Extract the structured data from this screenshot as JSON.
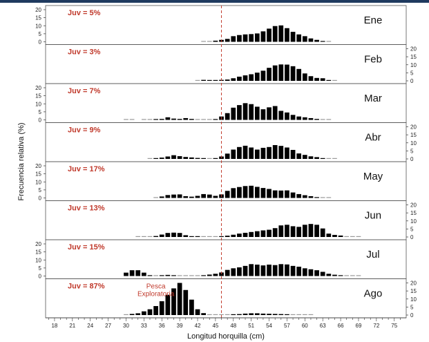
{
  "chart_data": {
    "type": "bar",
    "xlabel": "Longitud horquilla (cm)",
    "ylabel": "Frecuencia relativa (%)",
    "x_ticks": [
      18,
      21,
      24,
      27,
      30,
      33,
      36,
      39,
      42,
      45,
      48,
      51,
      54,
      57,
      60,
      63,
      66,
      69,
      72,
      75
    ],
    "xlim": [
      16.5,
      77
    ],
    "ylim": [
      0,
      20
    ],
    "y_ticks": [
      0,
      5,
      10,
      15,
      20
    ],
    "reference_line_x": 46,
    "bins": [
      30,
      31,
      32,
      33,
      34,
      35,
      36,
      37,
      38,
      39,
      40,
      41,
      42,
      43,
      44,
      45,
      46,
      47,
      48,
      49,
      50,
      51,
      52,
      53,
      54,
      55,
      56,
      57,
      58,
      59,
      60,
      61,
      62,
      63,
      64,
      65,
      66,
      67,
      68,
      69,
      70,
      71
    ],
    "annotation": {
      "month": "Ago",
      "x": 35,
      "lines": [
        "Pesca",
        "Exploratoria"
      ]
    },
    "panels": [
      {
        "month": "Ene",
        "juv": "Juv = 5%",
        "values": [
          0,
          0,
          0,
          0,
          0,
          0,
          0,
          0,
          0,
          0,
          0,
          0,
          0,
          0.2,
          0.3,
          0.7,
          1.2,
          1.8,
          3.5,
          4.2,
          4.6,
          4.8,
          5.2,
          6.5,
          8.2,
          9.8,
          10.2,
          8.5,
          6.2,
          4.6,
          3.5,
          2.1,
          1.2,
          0.4,
          0.2,
          0,
          0,
          0,
          0,
          0,
          0,
          0
        ]
      },
      {
        "month": "Feb",
        "juv": "Juv = 3%",
        "values": [
          0,
          0,
          0,
          0,
          0,
          0,
          0,
          0,
          0,
          0,
          0,
          0,
          0.3,
          0.6,
          0.5,
          0.4,
          0.6,
          0.8,
          1.6,
          2.6,
          3.4,
          4.1,
          5.1,
          6.3,
          8.1,
          9.6,
          10.2,
          10.1,
          9.1,
          7.4,
          4.6,
          2.9,
          1.8,
          1.6,
          0.4,
          0.2,
          0,
          0,
          0,
          0,
          0,
          0
        ]
      },
      {
        "month": "Mar",
        "juv": "Juv = 7%",
        "values": [
          0.2,
          0.2,
          0,
          0.2,
          0.3,
          0.4,
          0.6,
          1.6,
          0.8,
          0.6,
          1.1,
          0.6,
          0.3,
          0.2,
          0.2,
          0.4,
          2.1,
          4.2,
          7.6,
          9.2,
          10.4,
          9.8,
          8.2,
          6.6,
          7.8,
          8.6,
          5.6,
          4.6,
          3.1,
          2.1,
          1.6,
          1.1,
          0.6,
          0.2,
          0.1,
          0,
          0,
          0,
          0,
          0,
          0,
          0
        ]
      },
      {
        "month": "Abr",
        "juv": "Juv = 9%",
        "values": [
          0,
          0,
          0,
          0,
          0.3,
          0.5,
          0.8,
          1.5,
          2.3,
          1.7,
          1.2,
          0.9,
          0.6,
          0.5,
          0.3,
          0.5,
          1.5,
          3.3,
          5.8,
          7.4,
          8.2,
          7.1,
          5.8,
          6.9,
          7.4,
          8.6,
          8.1,
          7.1,
          5.6,
          3.4,
          2.5,
          1.6,
          1.1,
          0.5,
          0.3,
          0.1,
          0,
          0,
          0,
          0,
          0,
          0
        ]
      },
      {
        "month": "May",
        "juv": "Juv = 17%",
        "values": [
          0,
          0,
          0,
          0,
          0,
          0.3,
          0.9,
          1.8,
          2.1,
          2.2,
          1.1,
          0.8,
          1.3,
          2.4,
          2.1,
          1.3,
          2.2,
          4.4,
          6.1,
          6.8,
          7.4,
          7.6,
          6.9,
          6.2,
          5.6,
          4.7,
          4.6,
          4.7,
          3.4,
          2.4,
          1.7,
          1.1,
          0.5,
          0.2,
          0.1,
          0,
          0,
          0,
          0,
          0,
          0,
          0
        ]
      },
      {
        "month": "Jun",
        "juv": "Juv = 13%",
        "values": [
          0,
          0,
          0.1,
          0.2,
          0.3,
          0.6,
          1.5,
          2.5,
          2.7,
          2.5,
          1.1,
          0.5,
          0.5,
          0.2,
          0.2,
          0.2,
          0.4,
          0.8,
          1.4,
          2.1,
          2.6,
          3.1,
          3.6,
          4.1,
          4.5,
          5.5,
          7.2,
          7.6,
          6.7,
          6.3,
          7.6,
          8.1,
          7.6,
          5.3,
          2.1,
          1.3,
          0.9,
          0.3,
          0.2,
          0.1,
          0,
          0
        ]
      },
      {
        "month": "Jul",
        "juv": "Juv = 15%",
        "values": [
          2.1,
          3.6,
          3.6,
          2.1,
          0.4,
          0.3,
          0.5,
          0.7,
          0.5,
          0.3,
          0.3,
          0.3,
          0.3,
          0.5,
          0.9,
          1.4,
          2.2,
          3.8,
          4.8,
          5.4,
          6.3,
          7.4,
          7.1,
          6.6,
          7.1,
          6.8,
          7.4,
          7.2,
          6.3,
          5.8,
          4.8,
          4.2,
          3.6,
          2.6,
          1.4,
          0.8,
          0.4,
          0.3,
          0.2,
          0.1,
          0,
          0
        ]
      },
      {
        "month": "Ago",
        "juv": "Juv = 87%",
        "values": [
          0.3,
          0.7,
          1.1,
          2.3,
          3.6,
          5.6,
          8.6,
          12.6,
          16.6,
          20,
          15.6,
          9.6,
          3.6,
          1.2,
          0.3,
          0.1,
          0.1,
          0.2,
          0.4,
          0.6,
          0.9,
          1.1,
          1.1,
          0.9,
          0.8,
          0.7,
          0.6,
          0.4,
          0.3,
          0.2,
          0.1,
          0.1,
          0,
          0,
          0,
          0,
          0,
          0,
          0,
          0,
          0,
          0
        ]
      }
    ]
  }
}
